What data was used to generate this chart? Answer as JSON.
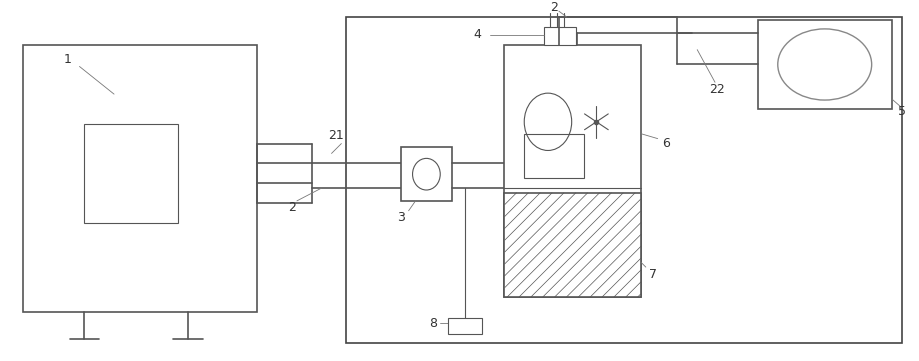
{
  "bg_color": "#ffffff",
  "line_color": "#555555",
  "lw": 1.0,
  "fig_w": 9.2,
  "fig_h": 3.61,
  "dpi": 100
}
